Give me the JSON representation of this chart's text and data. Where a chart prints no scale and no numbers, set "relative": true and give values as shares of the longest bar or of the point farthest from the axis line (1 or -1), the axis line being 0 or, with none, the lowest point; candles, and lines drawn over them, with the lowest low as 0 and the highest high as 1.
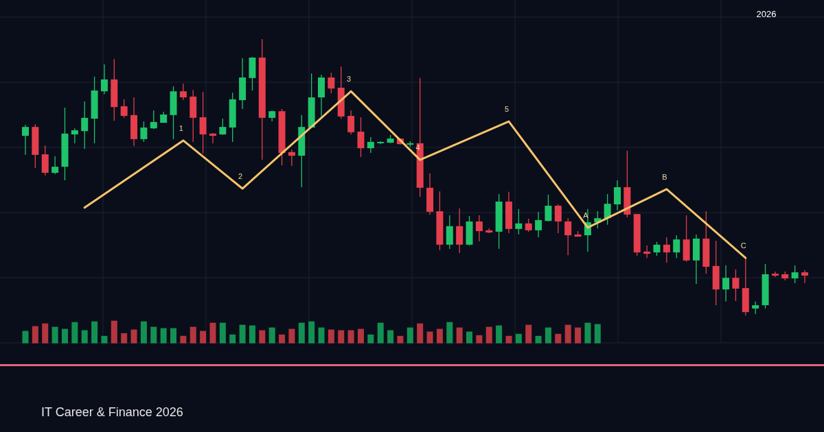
{
  "chart_data": [
    {
      "type": "candlestick",
      "subtitle": "IT Career & Finance 2026",
      "annotations": [
        "2026",
        {
          "text": "1",
          "y": 0.633
        },
        {
          "text": "2",
          "y": 0.459
        },
        {
          "text": "3",
          "y": 0.811
        },
        {
          "text": "4",
          "y": 0.563
        },
        {
          "text": "5",
          "y": 0.702
        },
        {
          "text": "A",
          "y": 0.318
        },
        {
          "text": "B",
          "y": 0.457
        },
        {
          "text": "C",
          "y": 0.208
        }
      ],
      "relative": true,
      "grid": true,
      "categories": [
        null,
        null,
        null,
        null,
        null,
        null,
        null,
        null,
        null,
        null,
        null,
        null,
        null,
        null,
        null,
        null,
        null,
        null,
        null,
        null,
        null,
        null,
        null,
        null,
        null,
        null,
        null,
        null,
        null,
        null,
        null,
        null,
        null,
        null,
        null,
        null,
        null,
        null,
        null,
        null,
        null,
        null,
        null,
        null,
        null,
        null,
        null,
        null,
        null,
        null,
        null,
        null,
        null,
        null,
        null,
        null,
        null,
        null,
        null,
        null,
        null,
        null,
        null,
        null,
        null,
        null,
        null,
        null,
        null,
        null,
        null,
        null,
        null,
        null,
        null,
        null,
        null,
        null,
        null,
        null
      ],
      "ohlc": [
        [
          0.65,
          0.69,
          0.581,
          0.682
        ],
        [
          0.682,
          0.692,
          0.534,
          0.581
        ],
        [
          0.583,
          0.615,
          0.506,
          0.516
        ],
        [
          0.516,
          0.576,
          0.511,
          0.538
        ],
        [
          0.538,
          0.752,
          0.489,
          0.658
        ],
        [
          0.655,
          0.677,
          0.623,
          0.67
        ],
        [
          0.667,
          0.774,
          0.603,
          0.715
        ],
        [
          0.712,
          0.864,
          0.623,
          0.814
        ],
        [
          0.811,
          0.908,
          0.801,
          0.854
        ],
        [
          0.854,
          0.928,
          0.705,
          0.754
        ],
        [
          0.757,
          0.782,
          0.715,
          0.722
        ],
        [
          0.725,
          0.789,
          0.613,
          0.638
        ],
        [
          0.638,
          0.702,
          0.628,
          0.68
        ],
        [
          0.677,
          0.742,
          0.675,
          0.7
        ],
        [
          0.697,
          0.737,
          0.697,
          0.727
        ],
        [
          0.725,
          0.829,
          0.638,
          0.811
        ],
        [
          0.811,
          0.839,
          0.779,
          0.789
        ],
        [
          0.792,
          0.816,
          0.628,
          0.715
        ],
        [
          0.717,
          0.809,
          0.586,
          0.655
        ],
        [
          0.658,
          0.66,
          0.623,
          0.65
        ],
        [
          0.655,
          0.712,
          0.653,
          0.682
        ],
        [
          0.68,
          0.806,
          0.628,
          0.782
        ],
        [
          0.779,
          0.931,
          0.747,
          0.861
        ],
        [
          0.859,
          0.935,
          0.814,
          0.933
        ],
        [
          0.933,
          1,
          0.563,
          0.715
        ],
        [
          0.715,
          0.742,
          0.702,
          0.739
        ],
        [
          0.739,
          0.747,
          0.543,
          0.588
        ],
        [
          0.591,
          0.6,
          0.541,
          0.578
        ],
        [
          0.578,
          0.725,
          0.464,
          0.682
        ],
        [
          0.68,
          0.876,
          0.68,
          0.789
        ],
        [
          0.789,
          0.871,
          0.72,
          0.861
        ],
        [
          0.861,
          0.878,
          0.804,
          0.821
        ],
        [
          0.824,
          0.901,
          0.712,
          0.72
        ],
        [
          0.722,
          0.742,
          0.655,
          0.663
        ],
        [
          0.665,
          0.717,
          0.573,
          0.605
        ],
        [
          0.605,
          0.645,
          0.588,
          0.628
        ],
        [
          0.623,
          0.63,
          0.62,
          0.628
        ],
        [
          0.625,
          0.653,
          0.623,
          0.64
        ],
        [
          0.64,
          0.64,
          0.618,
          0.62
        ],
        [
          0.618,
          0.63,
          0.61,
          0.623
        ],
        [
          0.623,
          0.859,
          0.429,
          0.462
        ],
        [
          0.462,
          0.514,
          0.365,
          0.375
        ],
        [
          0.377,
          0.449,
          0.236,
          0.256
        ],
        [
          0.256,
          0.362,
          0.241,
          0.323
        ],
        [
          0.323,
          0.387,
          0.226,
          0.256
        ],
        [
          0.256,
          0.36,
          0.253,
          0.34
        ],
        [
          0.34,
          0.362,
          0.268,
          0.305
        ],
        [
          0.308,
          0.315,
          0.298,
          0.3
        ],
        [
          0.303,
          0.439,
          0.241,
          0.412
        ],
        [
          0.412,
          0.447,
          0.298,
          0.313
        ],
        [
          0.313,
          0.385,
          0.293,
          0.333
        ],
        [
          0.333,
          0.35,
          0.303,
          0.308
        ],
        [
          0.308,
          0.375,
          0.283,
          0.345
        ],
        [
          0.342,
          0.437,
          0.34,
          0.397
        ],
        [
          0.397,
          0.402,
          0.298,
          0.34
        ],
        [
          0.34,
          0.352,
          0.218,
          0.29
        ],
        [
          0.293,
          0.305,
          0.285,
          0.285
        ],
        [
          0.29,
          0.385,
          0.231,
          0.337
        ],
        [
          0.337,
          0.377,
          0.315,
          0.352
        ],
        [
          0.352,
          0.439,
          0.328,
          0.404
        ],
        [
          0.402,
          0.489,
          0.38,
          0.464
        ],
        [
          0.464,
          0.596,
          0.355,
          0.365
        ],
        [
          0.367,
          0.367,
          0.216,
          0.228
        ],
        [
          0.231,
          0.253,
          0.208,
          0.223
        ],
        [
          0.228,
          0.266,
          0.216,
          0.256
        ],
        [
          0.256,
          0.283,
          0.191,
          0.228
        ],
        [
          0.228,
          0.29,
          0.208,
          0.275
        ],
        [
          0.275,
          0.362,
          0.194,
          0.199
        ],
        [
          0.199,
          0.293,
          0.114,
          0.278
        ],
        [
          0.278,
          0.377,
          0.151,
          0.176
        ],
        [
          0.179,
          0.27,
          0.037,
          0.094
        ],
        [
          0.094,
          0.181,
          0.05,
          0.136
        ],
        [
          0.136,
          0.166,
          0.052,
          0.097
        ],
        [
          0.099,
          0.206,
          0,
          0.012
        ],
        [
          0.025,
          0.05,
          0.005,
          0.037
        ],
        [
          0.037,
          0.186,
          0.025,
          0.149
        ],
        [
          0.151,
          0.159,
          0.139,
          0.144
        ],
        [
          0.149,
          0.159,
          0.127,
          0.134
        ],
        [
          0.134,
          0.181,
          0.117,
          0.156
        ],
        [
          0.156,
          0.164,
          0.117,
          0.144
        ]
      ],
      "colors": [
        "#1fc46b",
        "#e53e4d",
        "#e53e4d",
        "#1fc46b",
        "#1fc46b",
        "#1fc46b",
        "#1fc46b",
        "#1fc46b",
        "#1fc46b",
        "#e53e4d",
        "#e53e4d",
        "#e53e4d",
        "#1fc46b",
        "#1fc46b",
        "#1fc46b",
        "#1fc46b",
        "#e53e4d",
        "#e53e4d",
        "#e53e4d",
        "#e53e4d",
        "#1fc46b",
        "#1fc46b",
        "#1fc46b",
        "#1fc46b",
        "#e53e4d",
        "#1fc46b",
        "#e53e4d",
        "#e53e4d",
        "#1fc46b",
        "#1fc46b",
        "#1fc46b",
        "#e53e4d",
        "#e53e4d",
        "#e53e4d",
        "#e53e4d",
        "#1fc46b",
        "#1fc46b",
        "#1fc46b",
        "#e53e4d",
        "#1fc46b",
        "#e53e4d",
        "#e53e4d",
        "#e53e4d",
        "#1fc46b",
        "#e53e4d",
        "#1fc46b",
        "#e53e4d",
        "#e53e4d",
        "#1fc46b",
        "#e53e4d",
        "#1fc46b",
        "#e53e4d",
        "#1fc46b",
        "#1fc46b",
        "#e53e4d",
        "#e53e4d",
        "#e53e4d",
        "#1fc46b",
        "#1fc46b",
        "#1fc46b",
        "#1fc46b",
        "#e53e4d",
        "#e53e4d",
        "#e53e4d",
        "#1fc46b",
        "#e53e4d",
        "#1fc46b",
        "#e53e4d",
        "#1fc46b",
        "#e53e4d",
        "#e53e4d",
        "#1fc46b",
        "#e53e4d",
        "#e53e4d",
        "#1fc46b",
        "#1fc46b",
        "#e53e4d",
        "#e53e4d",
        "#1fc46b",
        "#e53e4d"
      ],
      "series": [
        {
          "type": "line",
          "color": "#f7c46c",
          "values": [
            null,
            null,
            null,
            null,
            null,
            null,
            0.39,
            null,
            null,
            null,
            null,
            null,
            null,
            null,
            null,
            null,
            0.633,
            null,
            null,
            null,
            null,
            null,
            0.459,
            null,
            null,
            null,
            null,
            null,
            null,
            null,
            null,
            null,
            null,
            0.811,
            null,
            null,
            null,
            null,
            null,
            null,
            0.563,
            null,
            null,
            null,
            null,
            null,
            null,
            null,
            null,
            0.702,
            null,
            null,
            null,
            null,
            null,
            null,
            null,
            0.318,
            null,
            null,
            null,
            null,
            null,
            null,
            null,
            0.457,
            null,
            null,
            null,
            null,
            null,
            null,
            null,
            0.208,
            null,
            null,
            null,
            null,
            null,
            null
          ]
        }
      ]
    },
    {
      "type": "bar",
      "relative": true,
      "categories": [
        null,
        null,
        null,
        null,
        null,
        null,
        null,
        null,
        null,
        null,
        null,
        null,
        null,
        null,
        null,
        null,
        null,
        null,
        null,
        null,
        null,
        null,
        null,
        null,
        null,
        null,
        null,
        null,
        null,
        null,
        null,
        null,
        null,
        null,
        null,
        null,
        null,
        null,
        null,
        null,
        null,
        null,
        null,
        null,
        null,
        null,
        null,
        null,
        null,
        null,
        null,
        null,
        null,
        null,
        null,
        null,
        null,
        null,
        null,
        null,
        null,
        null,
        null,
        null,
        null,
        null,
        null,
        null,
        null,
        null,
        null,
        null,
        null,
        null,
        null,
        null,
        null,
        null,
        null,
        null
      ],
      "values": [
        0.55,
        0.76,
        0.88,
        0.73,
        0.64,
        0.94,
        0.58,
        0.97,
        0.33,
        1,
        0.45,
        0.61,
        0.97,
        0.73,
        0.67,
        0.67,
        0.33,
        0.73,
        0.55,
        0.91,
        0.91,
        0.39,
        0.82,
        0.79,
        0.58,
        0.7,
        0.39,
        0.64,
        0.91,
        0.97,
        0.7,
        0.61,
        0.58,
        0.58,
        0.64,
        0.39,
        0.91,
        0.58,
        0.33,
        0.7,
        0.88,
        0.52,
        0.64,
        0.94,
        0.7,
        0.52,
        0.36,
        0.73,
        0.79,
        0.33,
        0.42,
        0.82,
        0.33,
        0.7,
        0.42,
        0.82,
        0.7,
        0.91,
        0.85,
        null,
        null,
        null,
        null,
        null,
        null,
        null,
        null,
        null,
        null,
        null,
        null,
        null,
        null,
        null,
        null,
        null,
        null,
        null,
        null,
        null
      ],
      "colors": [
        "#139152",
        "#b4363f",
        "#b4363f",
        "#139152",
        "#139152",
        "#139152",
        "#139152",
        "#139152",
        "#139152",
        "#b4363f",
        "#b4363f",
        "#b4363f",
        "#139152",
        "#139152",
        "#139152",
        "#139152",
        "#b4363f",
        "#b4363f",
        "#b4363f",
        "#b4363f",
        "#139152",
        "#139152",
        "#139152",
        "#139152",
        "#b4363f",
        "#139152",
        "#b4363f",
        "#b4363f",
        "#139152",
        "#139152",
        "#139152",
        "#b4363f",
        "#b4363f",
        "#b4363f",
        "#b4363f",
        "#139152",
        "#139152",
        "#139152",
        "#b4363f",
        "#139152",
        "#b4363f",
        "#b4363f",
        "#b4363f",
        "#139152",
        "#b4363f",
        "#139152",
        "#b4363f",
        "#b4363f",
        "#139152",
        "#b4363f",
        "#139152",
        "#b4363f",
        "#139152",
        "#139152",
        "#b4363f",
        "#b4363f",
        "#b4363f",
        "#139152",
        "#139152",
        null,
        null,
        null,
        null,
        null,
        null,
        null,
        null,
        null,
        null,
        null,
        null,
        null,
        null,
        null,
        null,
        null,
        null,
        null,
        null,
        null
      ]
    }
  ]
}
